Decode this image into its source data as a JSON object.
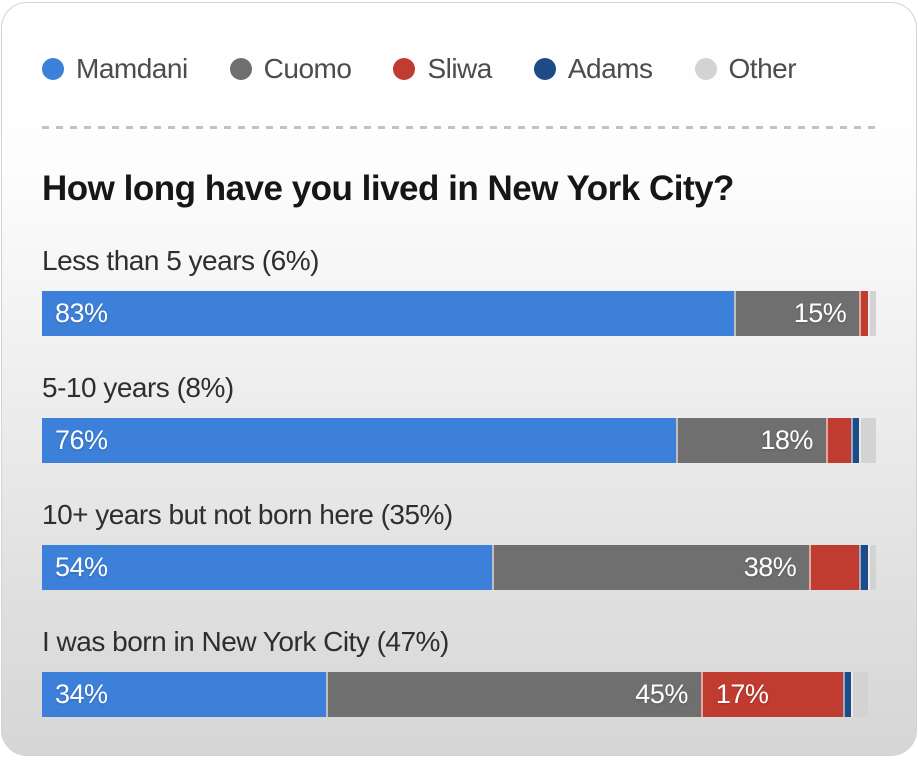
{
  "legend": {
    "items": [
      {
        "label": "Mamdani",
        "color": "#3c80da"
      },
      {
        "label": "Cuomo",
        "color": "#6f6f6f"
      },
      {
        "label": "Sliwa",
        "color": "#c03b30"
      },
      {
        "label": "Adams",
        "color": "#1d4b87"
      },
      {
        "label": "Other",
        "color": "#d3d3d3"
      }
    ]
  },
  "chart_data": {
    "type": "bar",
    "variant": "horizontal-stacked",
    "unit": "%",
    "title": "How long have you lived in New York City?",
    "legend_position": "top",
    "series_names": [
      "Mamdani",
      "Cuomo",
      "Sliwa",
      "Adams",
      "Other"
    ],
    "colors": {
      "Mamdani": "#3c80da",
      "Cuomo": "#6f6f6f",
      "Sliwa": "#c03b30",
      "Adams": "#1d4b87",
      "Other": "#d3d3d3"
    },
    "xlim": [
      0,
      100
    ],
    "rows": [
      {
        "category": "Less than 5 years (6%)",
        "segments": [
          {
            "series": "Mamdani",
            "value": 83,
            "label": "83%",
            "align": "left"
          },
          {
            "series": "Cuomo",
            "value": 15,
            "label": "15%",
            "align": "right"
          },
          {
            "series": "Sliwa",
            "value": 1
          },
          {
            "series": "Other",
            "value": 1
          }
        ]
      },
      {
        "category": "5-10 years (8%)",
        "segments": [
          {
            "series": "Mamdani",
            "value": 76,
            "label": "76%",
            "align": "left"
          },
          {
            "series": "Cuomo",
            "value": 18,
            "label": "18%",
            "align": "right"
          },
          {
            "series": "Sliwa",
            "value": 3
          },
          {
            "series": "Adams",
            "value": 1
          },
          {
            "series": "Other",
            "value": 2
          }
        ]
      },
      {
        "category": "10+ years but not born here (35%)",
        "segments": [
          {
            "series": "Mamdani",
            "value": 54,
            "label": "54%",
            "align": "left"
          },
          {
            "series": "Cuomo",
            "value": 38,
            "label": "38%",
            "align": "right"
          },
          {
            "series": "Sliwa",
            "value": 6
          },
          {
            "series": "Adams",
            "value": 1
          },
          {
            "series": "Other",
            "value": 1
          }
        ]
      },
      {
        "category": "I was born in New York City (47%)",
        "segments": [
          {
            "series": "Mamdani",
            "value": 34,
            "label": "34%",
            "align": "left"
          },
          {
            "series": "Cuomo",
            "value": 45,
            "label": "45%",
            "align": "right"
          },
          {
            "series": "Sliwa",
            "value": 17,
            "label": "17%",
            "align": "left"
          },
          {
            "series": "Adams",
            "value": 1
          },
          {
            "series": "Other",
            "value": 2
          }
        ]
      }
    ]
  }
}
